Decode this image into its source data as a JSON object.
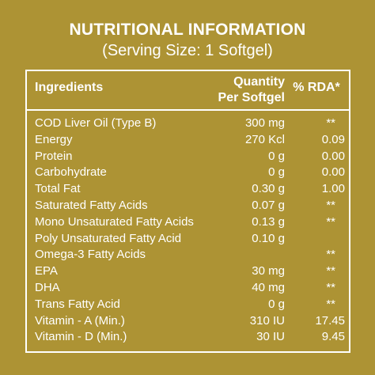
{
  "title": "NUTRITIONAL INFORMATION",
  "subtitle": "(Serving Size: 1 Softgel)",
  "header": {
    "ingredients": "Ingredients",
    "quantity_line1": "Quantity",
    "quantity_line2": "Per Softgel",
    "rda": "% RDA*"
  },
  "rows": [
    {
      "name": "COD Liver Oil (Type B)",
      "qty": "300 mg",
      "rda": "**"
    },
    {
      "name": "Energy",
      "qty": "270 Kcl",
      "rda": "0.09"
    },
    {
      "name": "Protein",
      "qty": "0 g",
      "rda": "0.00"
    },
    {
      "name": "Carbohydrate",
      "qty": "0 g",
      "rda": "0.00"
    },
    {
      "name": "Total Fat",
      "qty": "0.30 g",
      "rda": "1.00"
    },
    {
      "name": "Saturated Fatty Acids",
      "qty": "0.07 g",
      "rda": "**"
    },
    {
      "name": "Mono Unsaturated Fatty Acids",
      "qty": "0.13 g",
      "rda": "**"
    },
    {
      "name": "Poly Unsaturated Fatty Acid",
      "qty": "0.10 g",
      "rda": ""
    },
    {
      "name": "Omega-3 Fatty Acids",
      "qty": "",
      "rda": "**"
    },
    {
      "name": "EPA",
      "qty": "30 mg",
      "rda": "**"
    },
    {
      "name": "DHA",
      "qty": "40 mg",
      "rda": "**"
    },
    {
      "name": "Trans Fatty Acid",
      "qty": "0 g",
      "rda": "**"
    },
    {
      "name": "Vitamin - A (Min.)",
      "qty": "310 IU",
      "rda": "17.45"
    },
    {
      "name": "Vitamin - D (Min.)",
      "qty": "30 IU",
      "rda": "9.45"
    }
  ],
  "colors": {
    "background": "#ad9334",
    "text": "#ffffff"
  }
}
